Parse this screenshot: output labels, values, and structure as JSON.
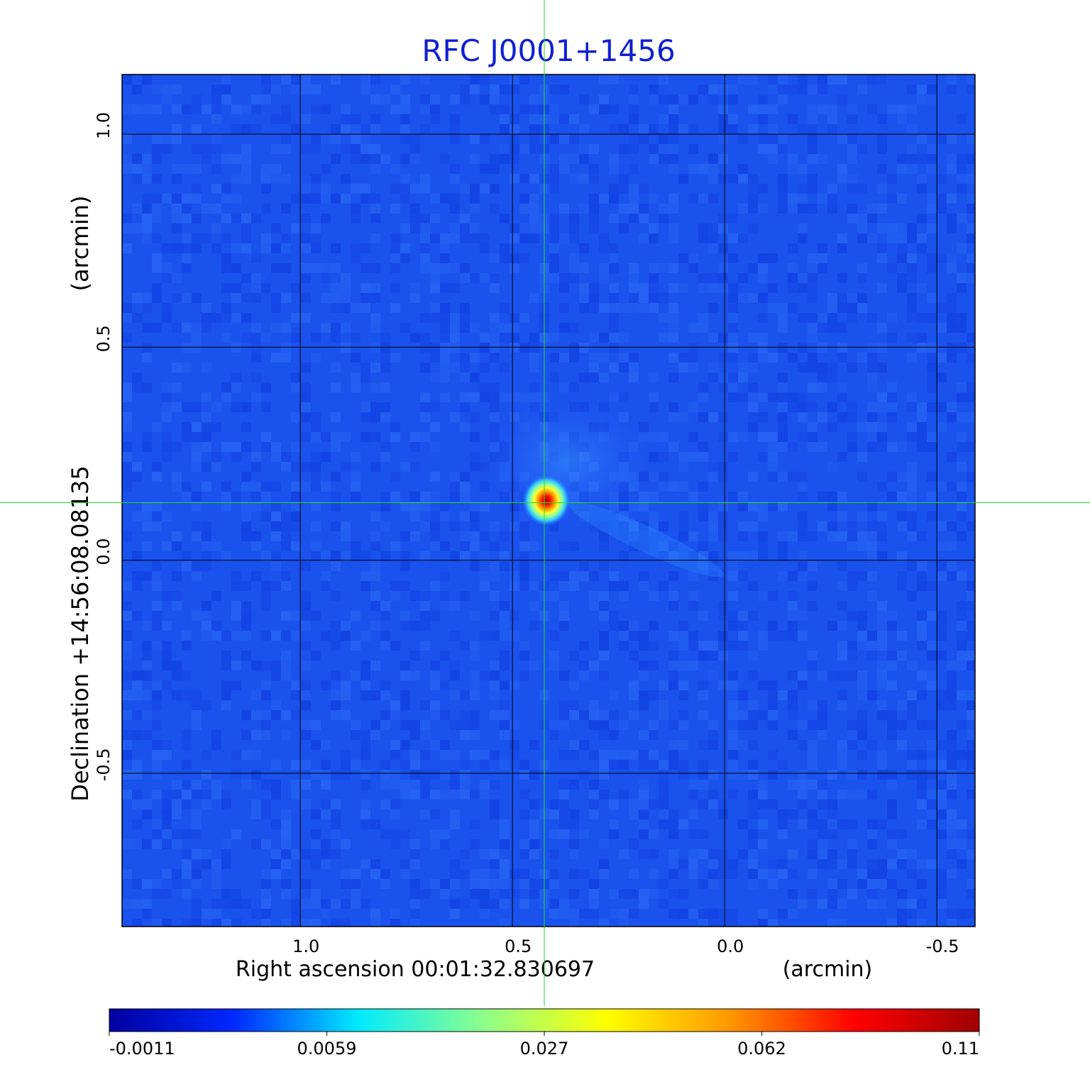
{
  "chart_data": {
    "type": "heatmap",
    "title": "RFC J0001+1456",
    "xlabel": "Right ascension  00:01:32.830697",
    "xunit": "(arcmin)",
    "ylabel": "Declination  +14:56:08.08135",
    "yunit": "(arcmin)",
    "x_range": [
      1.42,
      -0.59
    ],
    "y_range": [
      -0.86,
      1.14
    ],
    "x_ticks": [
      1.0,
      0.5,
      0.0,
      -0.5
    ],
    "x_tick_labels": [
      "1.0",
      "0.5",
      "0.0",
      "-0.5"
    ],
    "y_ticks": [
      1.0,
      0.5,
      0.0,
      -0.5
    ],
    "y_tick_labels": [
      "1.0",
      "0.5",
      "0.0",
      "-0.5"
    ],
    "grid": true,
    "crosshair": {
      "x": 0.425,
      "y": 0.135,
      "color": "#22dd22"
    },
    "source_peak": {
      "x": 0.42,
      "y": 0.14,
      "value": 0.11
    },
    "colorbar": {
      "colormap": "jet",
      "tick_labels": [
        "-0.0011",
        "0.0059",
        "0.027",
        "0.062",
        "0.11"
      ],
      "stops": [
        "#0000a0",
        "#0028ff",
        "#00eaff",
        "#8cff8c",
        "#ffff00",
        "#ff9600",
        "#ff0000",
        "#a00000"
      ]
    },
    "background_color": "#1a52ee",
    "title_color": "#1020d0",
    "grid_color": "#000000"
  }
}
